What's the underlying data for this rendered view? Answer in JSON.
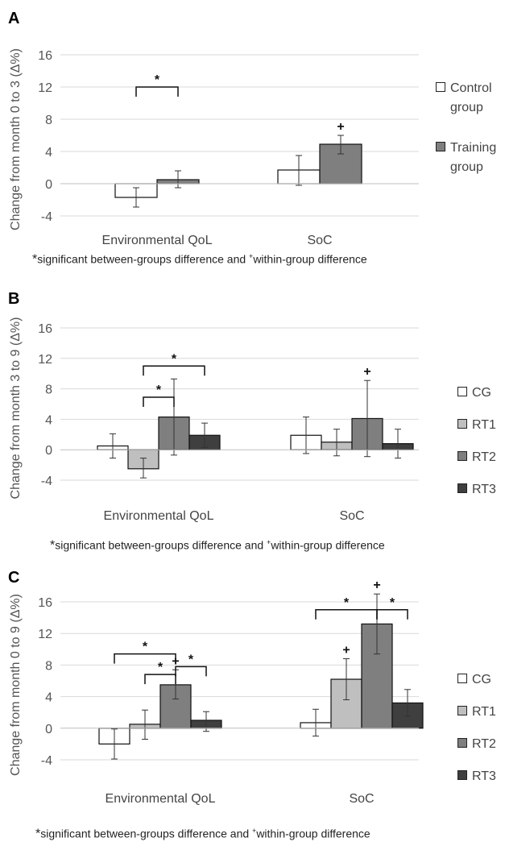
{
  "footnote": {
    "sig_mark": "*",
    "part1": "significant between-groups difference and ",
    "within_mark": "+",
    "part2": "within-group difference"
  },
  "colors": {
    "CG": "#ffffff",
    "RT1": "#bfbfbf",
    "RT2": "#7f7f7f",
    "RT3": "#3f3f3f",
    "grid": "#d9d9d9",
    "axis": "#bfbfbf"
  },
  "chart_data": [
    {
      "panel": "A",
      "type": "bar",
      "ylabel": "Change from month 0 to 3 (Δ%)",
      "ylim": [
        -4,
        16
      ],
      "yticks": [
        "-4",
        "0",
        "4",
        "8",
        "12",
        "16"
      ],
      "grid": true,
      "legend_position": "right",
      "categories": [
        "Environmental QoL",
        "SoC"
      ],
      "series": [
        {
          "name": "Control group",
          "legend_lines": [
            "Control",
            "group"
          ],
          "color_key": "CG",
          "values": [
            -1.7,
            1.7
          ],
          "err_low": [
            -2.9,
            -0.2
          ],
          "err_high": [
            -0.5,
            3.5
          ]
        },
        {
          "name": "Training group",
          "legend_lines": [
            "Training",
            "group"
          ],
          "color_key": "RT2",
          "values": [
            0.5,
            4.9
          ],
          "err_low": [
            -0.5,
            3.7
          ],
          "err_high": [
            1.6,
            6.0
          ]
        }
      ],
      "sig_brackets": [
        {
          "category": 0,
          "from": 0,
          "to": 1,
          "label": "*",
          "level": 12
        }
      ],
      "within_marks": [
        {
          "category": 1,
          "series": 1,
          "label": "+"
        }
      ]
    },
    {
      "panel": "B",
      "type": "bar",
      "ylabel": "Change from month 3 to 9 (Δ%)",
      "ylim": [
        -4,
        16
      ],
      "yticks": [
        "-4",
        "0",
        "4",
        "8",
        "12",
        "16"
      ],
      "grid": true,
      "legend_position": "right",
      "categories": [
        "Environmental QoL",
        "SoC"
      ],
      "series": [
        {
          "name": "CG",
          "legend_lines": [
            "CG"
          ],
          "color_key": "CG",
          "values": [
            0.5,
            1.9
          ],
          "err_low": [
            -1.1,
            -0.5
          ],
          "err_high": [
            2.1,
            4.3
          ]
        },
        {
          "name": "RT1",
          "legend_lines": [
            "RT1"
          ],
          "color_key": "RT1",
          "values": [
            -2.5,
            1.0
          ],
          "err_low": [
            -3.7,
            -0.8
          ],
          "err_high": [
            -1.1,
            2.7
          ]
        },
        {
          "name": "RT2",
          "legend_lines": [
            "RT2"
          ],
          "color_key": "RT2",
          "values": [
            4.3,
            4.1
          ],
          "err_low": [
            -0.7,
            -0.9
          ],
          "err_high": [
            9.3,
            9.1
          ]
        },
        {
          "name": "RT3",
          "legend_lines": [
            "RT3"
          ],
          "color_key": "RT3",
          "values": [
            1.9,
            0.8
          ],
          "err_low": [
            0.3,
            -1.1
          ],
          "err_high": [
            3.5,
            2.7
          ]
        }
      ],
      "sig_brackets": [
        {
          "category": 0,
          "from": 1,
          "to": 2,
          "label": "*",
          "level": 6.9
        },
        {
          "category": 0,
          "from": 1,
          "to": 3,
          "label": "*",
          "level": 11.0
        }
      ],
      "within_marks": [
        {
          "category": 1,
          "series": 2,
          "label": "+"
        }
      ]
    },
    {
      "panel": "C",
      "type": "bar",
      "ylabel": "Change from month 0 to 9 (Δ%)",
      "ylim": [
        -4,
        16
      ],
      "yticks": [
        "-4",
        "0",
        "4",
        "8",
        "12",
        "16"
      ],
      "grid": true,
      "legend_position": "right",
      "categories": [
        "Environmental QoL",
        "SoC"
      ],
      "series": [
        {
          "name": "CG",
          "legend_lines": [
            "CG"
          ],
          "color_key": "CG",
          "values": [
            -2.0,
            0.7
          ],
          "err_low": [
            -3.9,
            -1.0
          ],
          "err_high": [
            -0.1,
            2.4
          ]
        },
        {
          "name": "RT1",
          "legend_lines": [
            "RT1"
          ],
          "color_key": "RT1",
          "values": [
            0.5,
            6.2
          ],
          "err_low": [
            -1.4,
            3.6
          ],
          "err_high": [
            2.3,
            8.8
          ]
        },
        {
          "name": "RT2",
          "legend_lines": [
            "RT2"
          ],
          "color_key": "RT2",
          "values": [
            5.5,
            13.2
          ],
          "err_low": [
            3.7,
            9.4
          ],
          "err_high": [
            7.4,
            17.0
          ]
        },
        {
          "name": "RT3",
          "legend_lines": [
            "RT3"
          ],
          "color_key": "RT3",
          "values": [
            1.0,
            3.2
          ],
          "err_low": [
            -0.4,
            1.5
          ],
          "err_high": [
            2.1,
            4.9
          ]
        }
      ],
      "sig_brackets": [
        {
          "category": 0,
          "from": 1,
          "to": 2,
          "label": "*",
          "level": 6.8
        },
        {
          "category": 0,
          "from": 2,
          "to": 3,
          "label": "*",
          "level": 7.8
        },
        {
          "category": 0,
          "from": 0,
          "to": 2,
          "label": "*",
          "level": 9.4
        },
        {
          "category": 1,
          "from": 0,
          "to": 2,
          "label": "*",
          "level": 15.0
        },
        {
          "category": 1,
          "from": 2,
          "to": 3,
          "label": "*",
          "level": 15.0
        }
      ],
      "within_marks": [
        {
          "category": 0,
          "series": 2,
          "label": "+"
        },
        {
          "category": 1,
          "series": 1,
          "label": "+"
        },
        {
          "category": 1,
          "series": 2,
          "label": "+"
        }
      ]
    }
  ]
}
